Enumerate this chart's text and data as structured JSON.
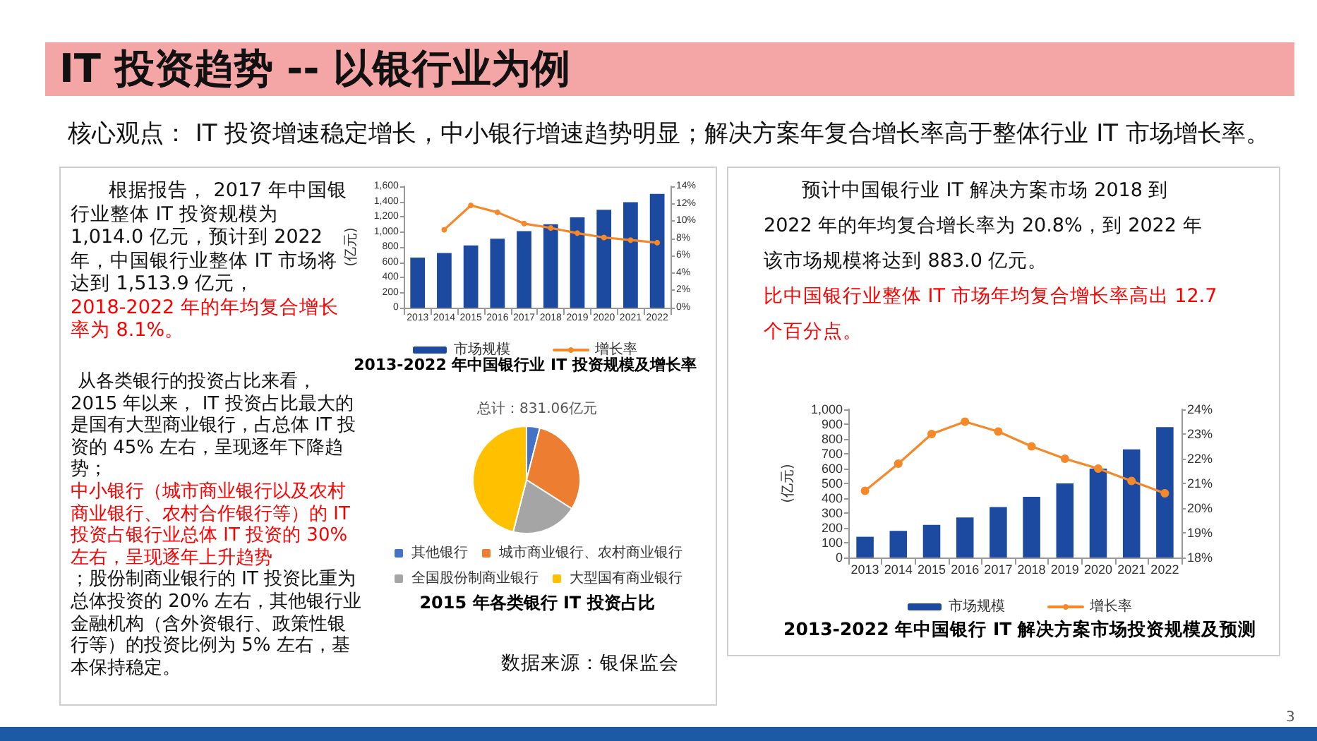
{
  "chart_data": [
    {
      "type": "other",
      "title": "IT 投资趋势 -- 以银行业为例",
      "subtitle": "核心观点： IT 投资增速稳定增长，中小银行增速趋势明显；解决方案年复合增长率高于整体行业 IT 市场增长率。"
    },
    {
      "type": "other",
      "annotations": [
        "根据报告， 2017 年中国银行业整体 IT 投资规模为 1,014.0 亿元，预计到 2022 年，中国银行业整体 IT 市场将达到 1,513.9 亿元，",
        "2018-2022 年的年均复合增长率为 8.1%。"
      ]
    },
    {
      "type": "bar",
      "title": "2013-2022 年中国银行业 IT 投资规模及增长率",
      "ylabel": "(亿元)",
      "categories": [
        "2013",
        "2014",
        "2015",
        "2016",
        "2017",
        "2018",
        "2019",
        "2020",
        "2021",
        "2022"
      ],
      "series": [
        {
          "name": "市场规模",
          "color": "#1c4aa0",
          "values": [
            660,
            720,
            820,
            910,
            1010,
            1100,
            1190,
            1290,
            1390,
            1500
          ]
        },
        {
          "name": "增长率",
          "type": "line",
          "axis": "y2",
          "color": "#f5892a",
          "values": [
            null,
            9.0,
            11.8,
            11.0,
            9.7,
            9.2,
            8.6,
            8.1,
            7.8,
            7.5
          ]
        }
      ],
      "ylim": [
        0,
        1600
      ],
      "yticks": [
        0,
        200,
        400,
        600,
        800,
        {
          "value": 1000,
          "label": "1,000"
        },
        {
          "value": 1200,
          "label": "1,200"
        },
        {
          "value": 1400,
          "label": "1,400"
        },
        {
          "value": 1600,
          "label": "1,600"
        }
      ],
      "y2lim": [
        0,
        14
      ],
      "y2ticks": [
        {
          "value": 0,
          "label": "0%"
        },
        {
          "value": 2,
          "label": "2%"
        },
        {
          "value": 4,
          "label": "4%"
        },
        {
          "value": 6,
          "label": "6%"
        },
        {
          "value": 8,
          "label": "8%"
        },
        {
          "value": 10,
          "label": "10%"
        },
        {
          "value": 12,
          "label": "12%"
        },
        {
          "value": 14,
          "label": "14%"
        }
      ],
      "grid": false,
      "legend": "bottom",
      "marker": "circle"
    },
    {
      "type": "other",
      "annotations": [
        "从各类银行的投资占比来看， 2015 年以来， IT 投资占比最大的是国有大型商业银行，占总体 IT 投资的 45% 左右，呈现逐年下降趋势；",
        "中小银行（城市商业银行以及农村商业银行、农村合作银行等）的 IT 投资占银行业总体 IT 投资的 30% 左右，呈现逐年上升趋势",
        "；股份制商业银行的 IT 投资比重为总体投资的 20% 左右，其他银行业金融机构（含外资银行、政策性银行等）的投资比例为 5% 左右，基本保持稳定。"
      ]
    },
    {
      "type": "pie",
      "title": "2015 年各类银行 IT 投资占比",
      "subtitle": "总计：831.06亿元",
      "categories": [
        "其他银行",
        "城市商业银行、农村商业银行",
        "全国股份制商业银行",
        "大型国有商业银行"
      ],
      "values": [
        4,
        30,
        20,
        46
      ],
      "colors": [
        "#4472c4",
        "#ed7d31",
        "#a5a5a5",
        "#ffc000"
      ],
      "legend": "bottom"
    },
    {
      "type": "other",
      "annotations": [
        "数据来源：银保监会"
      ]
    },
    {
      "type": "other",
      "annotations": [
        "预计中国银行业 IT 解决方案市场 2018 到 2022 年的年均复合增长率为 20.8%，到 2022 年该市场规模将达到 883.0 亿元。",
        "比中国银行业整体 IT 市场年均复合增长率高出 12.7 个百分点。"
      ]
    },
    {
      "type": "bar",
      "title": "2013-2022 年中国银行 IT 解决方案市场投资规模及预测",
      "ylabel": "(亿元)",
      "categories": [
        "2013",
        "2014",
        "2015",
        "2016",
        "2017",
        "2018",
        "2019",
        "2020",
        "2021",
        "2022"
      ],
      "series": [
        {
          "name": "市场规模",
          "color": "#1c4aa0",
          "values": [
            140,
            180,
            220,
            270,
            340,
            410,
            500,
            600,
            730,
            880
          ]
        },
        {
          "name": "增长率",
          "type": "line",
          "axis": "y2",
          "color": "#f5892a",
          "values": [
            20.7,
            21.8,
            23.0,
            23.5,
            23.1,
            22.5,
            22.0,
            21.6,
            21.1,
            20.6
          ]
        }
      ],
      "ylim": [
        0,
        1000
      ],
      "yticks": [
        0,
        100,
        200,
        300,
        400,
        500,
        600,
        700,
        800,
        900,
        {
          "value": 1000,
          "label": "1,000"
        }
      ],
      "y2lim": [
        18,
        24
      ],
      "y2ticks": [
        {
          "value": 18,
          "label": "18%"
        },
        {
          "value": 19,
          "label": "19%"
        },
        {
          "value": 20,
          "label": "20%"
        },
        {
          "value": 21,
          "label": "21%"
        },
        {
          "value": 22,
          "label": "22%"
        },
        {
          "value": 23,
          "label": "23%"
        },
        {
          "value": 24,
          "label": "24%"
        }
      ],
      "grid": false,
      "legend": "bottom",
      "marker": "circle"
    },
    {
      "type": "other",
      "annotations": [
        "3"
      ]
    }
  ]
}
